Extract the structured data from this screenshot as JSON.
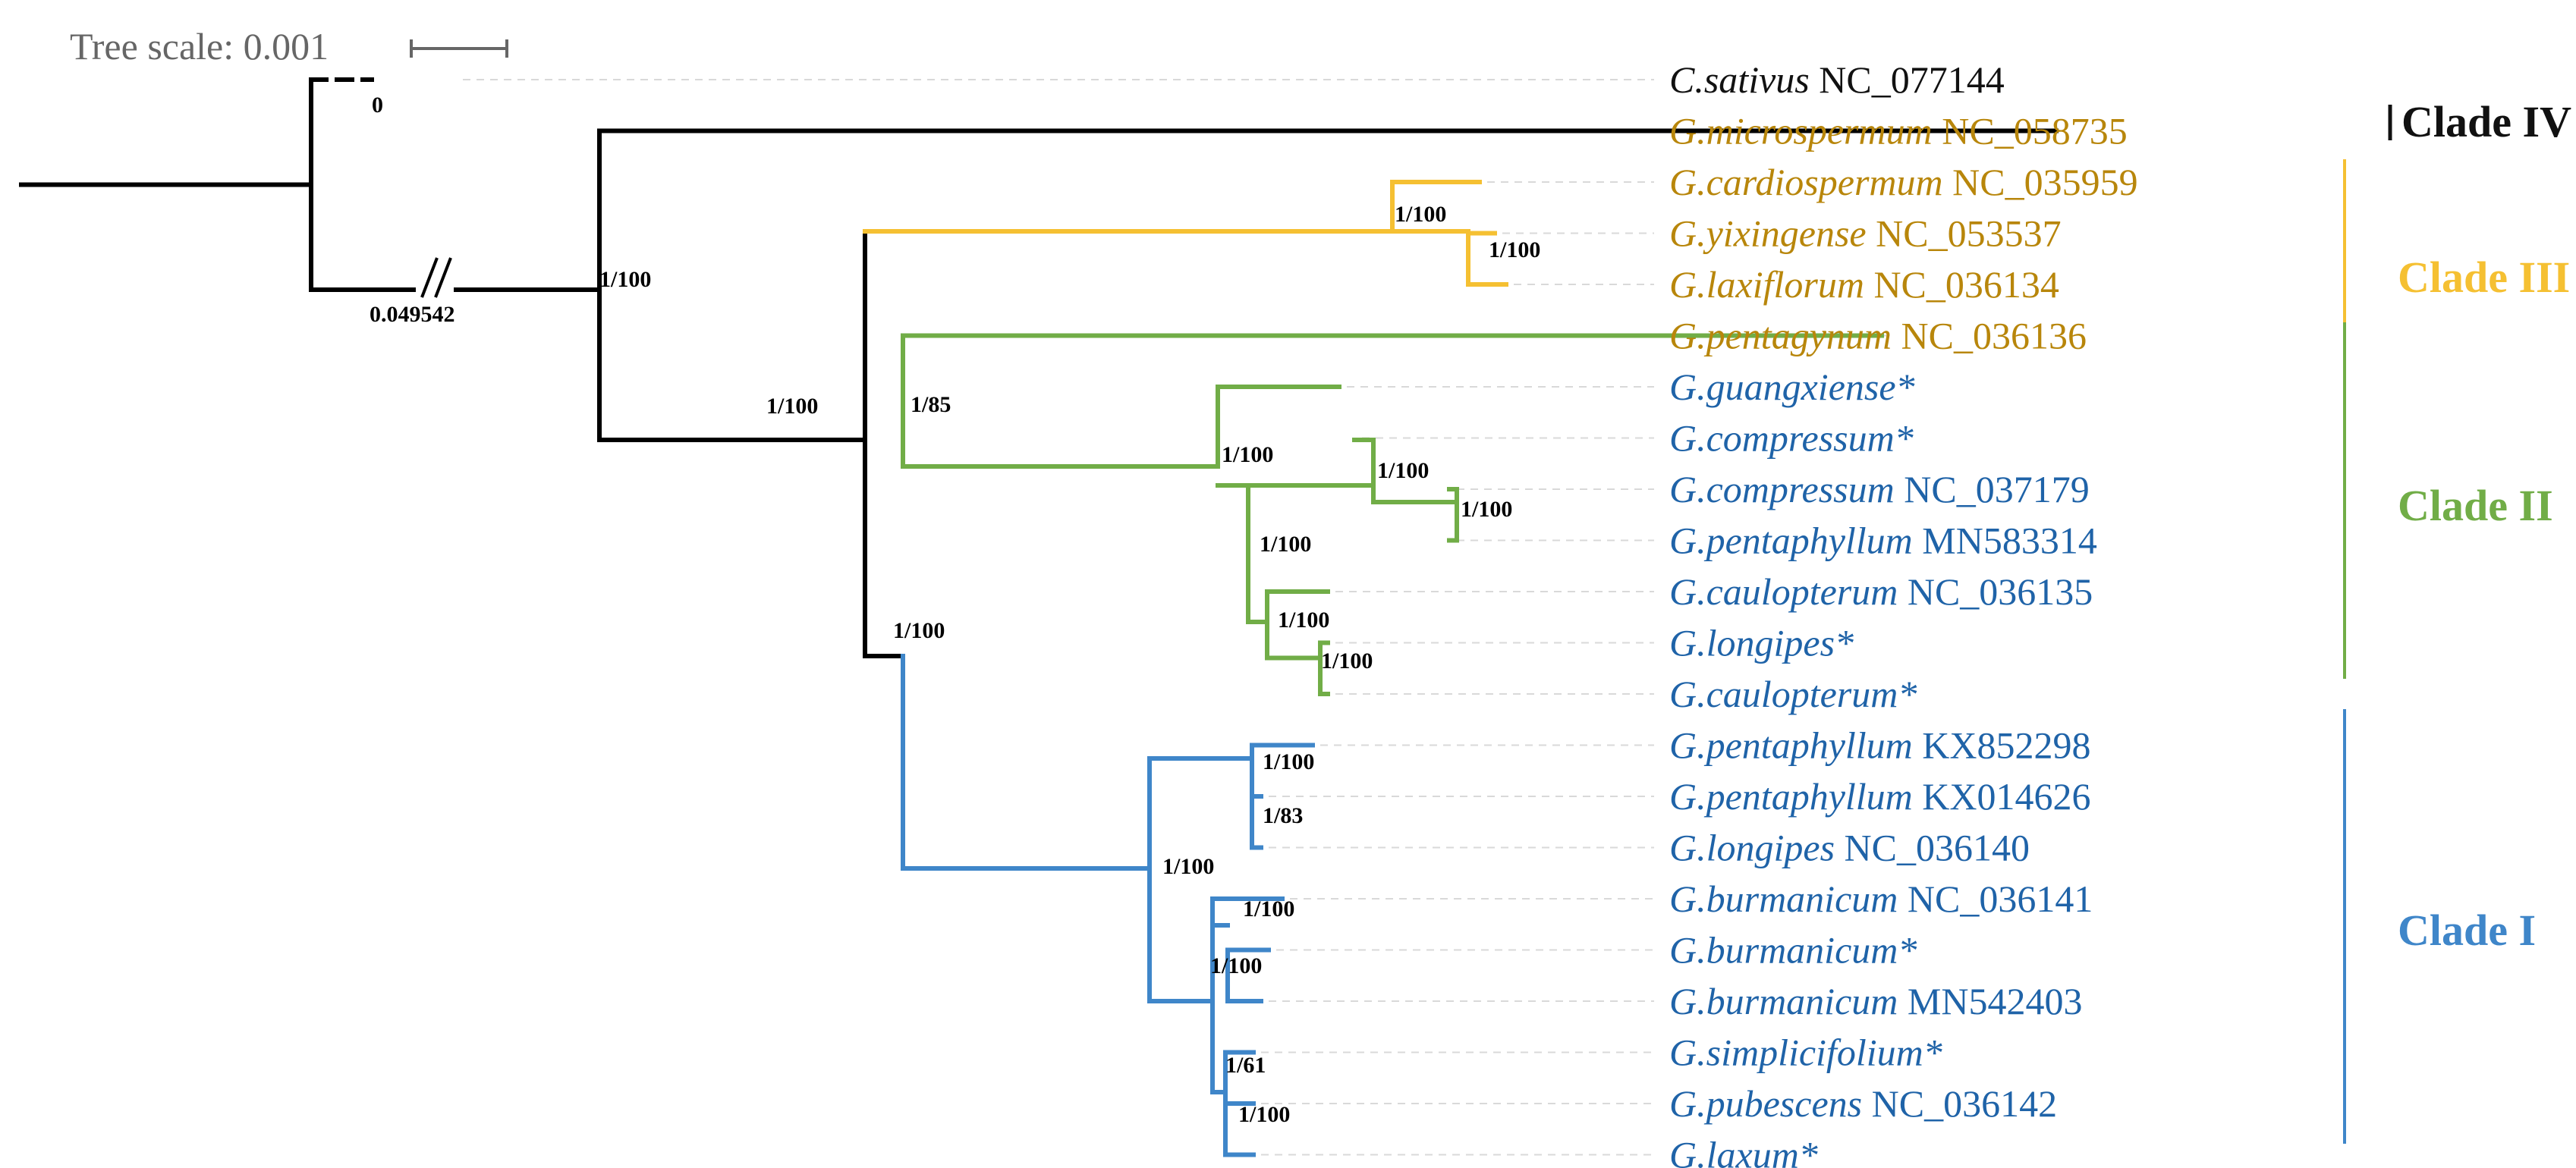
{
  "colors": {
    "black": "#000000",
    "yellow": "#F5C032",
    "green": "#71AD47",
    "blue": "#3F86C9",
    "label_gold": "#B8860B",
    "label_blue": "#1F63A8",
    "label_black": "#111111"
  },
  "scale": {
    "label": "Tree scale: 0.001"
  },
  "branch_labels": {
    "dashed_length": "0",
    "broken_length": "0.049542"
  },
  "taxa": [
    {
      "species": "C.sativus",
      "accession": "NC_077144",
      "color": "black"
    },
    {
      "species": "G.microspermum",
      "accession": "NC_058735",
      "color": "gold"
    },
    {
      "species": "G.cardiospermum",
      "accession": "NC_035959",
      "color": "gold"
    },
    {
      "species": "G.yixingense",
      "accession": "NC_053537",
      "color": "gold"
    },
    {
      "species": "G.laxiflorum",
      "accession": "NC_036134",
      "color": "gold"
    },
    {
      "species": "G.pentagynum",
      "accession": "NC_036136",
      "color": "gold"
    },
    {
      "species": "G.guangxiense*",
      "accession": "",
      "color": "blue"
    },
    {
      "species": "G.compressum*",
      "accession": "",
      "color": "blue"
    },
    {
      "species": "G.compressum",
      "accession": "NC_037179",
      "color": "blue"
    },
    {
      "species": "G.pentaphyllum",
      "accession": "MN583314",
      "color": "blue"
    },
    {
      "species": "G.caulopterum",
      "accession": "NC_036135",
      "color": "blue"
    },
    {
      "species": "G.longipes*",
      "accession": "",
      "color": "blue"
    },
    {
      "species": "G.caulopterum*",
      "accession": "",
      "color": "blue"
    },
    {
      "species": "G.pentaphyllum",
      "accession": "KX852298",
      "color": "blue"
    },
    {
      "species": "G.pentaphyllum",
      "accession": "KX014626",
      "color": "blue"
    },
    {
      "species": "G.longipes",
      "accession": "NC_036140",
      "color": "blue"
    },
    {
      "species": "G.burmanicum",
      "accession": "NC_036141",
      "color": "blue"
    },
    {
      "species": "G.burmanicum*",
      "accession": "",
      "color": "blue"
    },
    {
      "species": "G.burmanicum",
      "accession": "MN542403",
      "color": "blue"
    },
    {
      "species": "G.simplicifolium*",
      "accession": "",
      "color": "blue"
    },
    {
      "species": "G.pubescens",
      "accession": "NC_036142",
      "color": "blue"
    },
    {
      "species": "G.laxum*",
      "accession": "",
      "color": "blue"
    }
  ],
  "supports": [
    {
      "id": "s1",
      "label": "1/100"
    },
    {
      "id": "s2",
      "label": "1/100"
    },
    {
      "id": "s3",
      "label": "1/100"
    },
    {
      "id": "s4",
      "label": "1/100"
    },
    {
      "id": "s5",
      "label": "1/100"
    },
    {
      "id": "s6",
      "label": "1/85"
    },
    {
      "id": "s7",
      "label": "1/100"
    },
    {
      "id": "s8",
      "label": "1/100"
    },
    {
      "id": "s9",
      "label": "1/100"
    },
    {
      "id": "s10",
      "label": "1/100"
    },
    {
      "id": "s11",
      "label": "1/100"
    },
    {
      "id": "s12",
      "label": "1/100"
    },
    {
      "id": "s13",
      "label": "1/100"
    },
    {
      "id": "s14",
      "label": "1/83"
    },
    {
      "id": "s15",
      "label": "1/100"
    },
    {
      "id": "s16",
      "label": "1/100"
    },
    {
      "id": "s17",
      "label": "1/100"
    },
    {
      "id": "s18",
      "label": "1/61"
    },
    {
      "id": "s19",
      "label": "1/100"
    }
  ],
  "clades": [
    {
      "label": "Clade IV",
      "color": "#111111"
    },
    {
      "label": "Clade III",
      "color": "#F5C032"
    },
    {
      "label": "Clade II",
      "color": "#71AD47"
    },
    {
      "label": "Clade I",
      "color": "#3F86C9"
    }
  ]
}
